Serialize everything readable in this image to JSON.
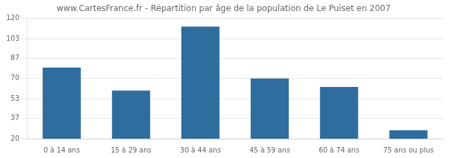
{
  "chart_data": {
    "type": "bar",
    "title": "www.CartesFrance.fr - Répartition par âge de la population de Le Puiset en 2007",
    "categories": [
      "0 à 14 ans",
      "15 à 29 ans",
      "30 à 44 ans",
      "45 à 59 ans",
      "60 à 74 ans",
      "75 ans ou plus"
    ],
    "values": [
      79,
      60,
      113,
      70,
      63,
      27
    ],
    "color": "#2e6d9e",
    "ylim": [
      20,
      120
    ],
    "yticks": [
      20,
      37,
      53,
      70,
      87,
      103,
      120
    ],
    "grid": true
  }
}
